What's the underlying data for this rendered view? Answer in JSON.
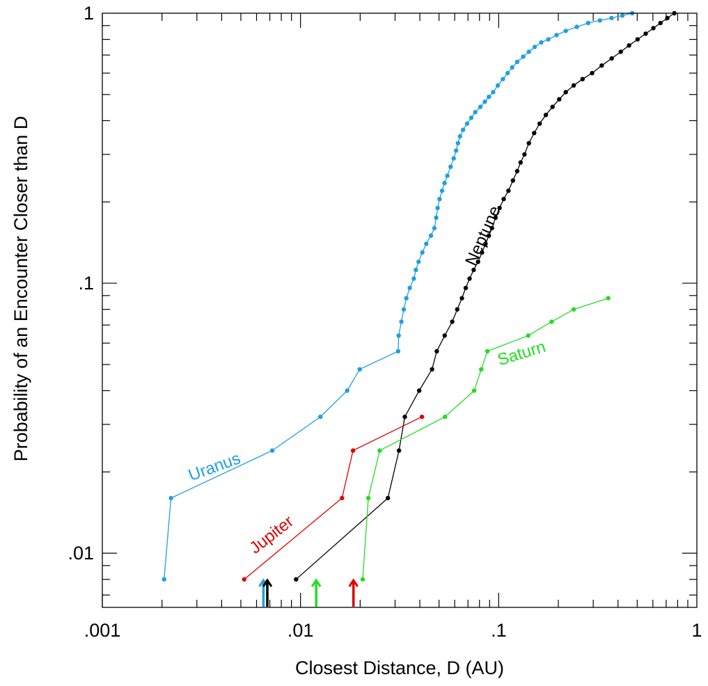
{
  "chart_data": {
    "type": "line",
    "title": "",
    "xlabel": "Closest Distance, D (AU)",
    "ylabel": "Probability of an Encounter Closer than D",
    "xscale": "log",
    "yscale": "log",
    "xlim": [
      0.001,
      1
    ],
    "ylim": [
      0.0063,
      1
    ],
    "x_ticks": [
      {
        "value": 0.001,
        "label": ".001"
      },
      {
        "value": 0.01,
        "label": ".01"
      },
      {
        "value": 0.1,
        "label": ".1"
      },
      {
        "value": 1,
        "label": "1"
      }
    ],
    "y_ticks": [
      {
        "value": 0.01,
        "label": ".01"
      },
      {
        "value": 0.1,
        "label": ".1"
      },
      {
        "value": 1,
        "label": "1"
      }
    ],
    "grid": false,
    "legend": "none",
    "series": [
      {
        "name": "Uranus",
        "color": "#1ea0e0",
        "x": [
          0.00205,
          0.00222,
          0.0072,
          0.0126,
          0.0172,
          0.0199,
          0.0311,
          0.0313,
          0.0323,
          0.0332,
          0.0342,
          0.0356,
          0.0373,
          0.0382,
          0.0394,
          0.0412,
          0.0431,
          0.0455,
          0.0474,
          0.0484,
          0.0492,
          0.0503,
          0.0518,
          0.0533,
          0.0551,
          0.0572,
          0.0593,
          0.061,
          0.0623,
          0.0638,
          0.0661,
          0.0693,
          0.0727,
          0.0762,
          0.0808,
          0.0852,
          0.0893,
          0.0938,
          0.099,
          0.105,
          0.111,
          0.117,
          0.124,
          0.133,
          0.142,
          0.152,
          0.164,
          0.178,
          0.196,
          0.218,
          0.248,
          0.283,
          0.324,
          0.371,
          0.421,
          0.472
        ],
        "y": [
          0.008,
          0.016,
          0.024,
          0.032,
          0.04,
          0.048,
          0.056,
          0.064,
          0.072,
          0.08,
          0.088,
          0.096,
          0.104,
          0.112,
          0.12,
          0.13,
          0.14,
          0.15,
          0.16,
          0.175,
          0.19,
          0.205,
          0.22,
          0.235,
          0.25,
          0.27,
          0.29,
          0.31,
          0.33,
          0.35,
          0.37,
          0.39,
          0.41,
          0.43,
          0.45,
          0.47,
          0.49,
          0.51,
          0.54,
          0.57,
          0.6,
          0.63,
          0.66,
          0.69,
          0.72,
          0.75,
          0.78,
          0.8,
          0.83,
          0.86,
          0.89,
          0.92,
          0.94,
          0.96,
          0.98,
          1.0
        ]
      },
      {
        "name": "Neptune",
        "color": "#000000",
        "x": [
          0.0095,
          0.0276,
          0.0314,
          0.0336,
          0.0397,
          0.0461,
          0.0487,
          0.0534,
          0.0583,
          0.0618,
          0.0652,
          0.0682,
          0.0713,
          0.0748,
          0.0787,
          0.0824,
          0.0859,
          0.0892,
          0.0925,
          0.0965,
          0.101,
          0.106,
          0.112,
          0.118,
          0.124,
          0.129,
          0.135,
          0.142,
          0.151,
          0.161,
          0.173,
          0.187,
          0.202,
          0.218,
          0.239,
          0.265,
          0.296,
          0.331,
          0.372,
          0.413,
          0.455,
          0.502,
          0.552,
          0.603,
          0.655,
          0.71,
          0.77
        ],
        "y": [
          0.008,
          0.016,
          0.024,
          0.032,
          0.04,
          0.048,
          0.056,
          0.064,
          0.072,
          0.08,
          0.088,
          0.096,
          0.104,
          0.112,
          0.12,
          0.13,
          0.14,
          0.15,
          0.16,
          0.175,
          0.19,
          0.205,
          0.22,
          0.24,
          0.26,
          0.28,
          0.3,
          0.33,
          0.36,
          0.39,
          0.42,
          0.45,
          0.48,
          0.51,
          0.54,
          0.57,
          0.6,
          0.64,
          0.68,
          0.72,
          0.76,
          0.8,
          0.84,
          0.88,
          0.92,
          0.96,
          1.0
        ]
      },
      {
        "name": "Jupiter",
        "color": "#e00000",
        "x": [
          0.0052,
          0.0162,
          0.0184,
          0.041
        ],
        "y": [
          0.008,
          0.016,
          0.024,
          0.032
        ]
      },
      {
        "name": "Saturn",
        "color": "#22dd22",
        "x": [
          0.0206,
          0.022,
          0.0251,
          0.0536,
          0.0752,
          0.0817,
          0.0877,
          0.141,
          0.185,
          0.239,
          0.357
        ],
        "y": [
          0.008,
          0.016,
          0.024,
          0.032,
          0.04,
          0.048,
          0.056,
          0.064,
          0.072,
          0.08,
          0.088
        ]
      }
    ],
    "series_labels": [
      {
        "series": "Uranus",
        "text": "Uranus",
        "color": "#1ea0e0",
        "anchor_x": 0.0028,
        "anchor_y": 0.0185,
        "angle": -20
      },
      {
        "series": "Neptune",
        "text": "Neptune",
        "color": "#000000",
        "anchor_x": 0.076,
        "anchor_y": 0.115,
        "angle": -66
      },
      {
        "series": "Jupiter",
        "text": "Jupiter",
        "color": "#e00000",
        "anchor_x": 0.0059,
        "anchor_y": 0.0099,
        "angle": -38
      },
      {
        "series": "Saturn",
        "text": "Saturn",
        "color": "#22dd22",
        "anchor_x": 0.101,
        "anchor_y": 0.0495,
        "angle": -17
      }
    ],
    "arrows": [
      {
        "series": "Uranus",
        "x": 0.0065,
        "color": "#1ea0e0"
      },
      {
        "series": "Neptune",
        "x": 0.0068,
        "color": "#000000"
      },
      {
        "series": "Saturn",
        "x": 0.012,
        "color": "#22dd22"
      },
      {
        "series": "Jupiter",
        "x": 0.0185,
        "color": "#e00000"
      }
    ]
  }
}
